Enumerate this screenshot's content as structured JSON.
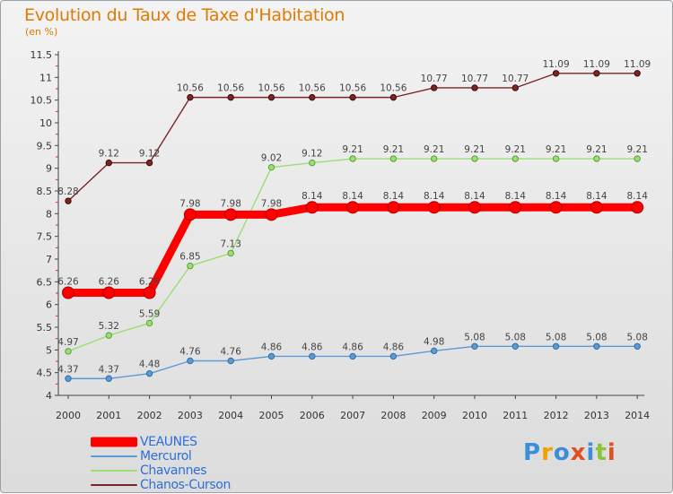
{
  "title": "Evolution du Taux de Taxe d'Habitation",
  "unit": "(en %)",
  "logo_text": "Proxiti",
  "chart_data": {
    "type": "line",
    "title": "Evolution du Taux de Taxe d'Habitation",
    "ylabel": "(en %)",
    "xlabel": "",
    "x": [
      "2000",
      "2001",
      "2002",
      "2003",
      "2004",
      "2005",
      "2006",
      "2007",
      "2008",
      "2009",
      "2010",
      "2011",
      "2012",
      "2013",
      "2014"
    ],
    "ylim": [
      4,
      11.5
    ],
    "yticks": [
      "4",
      "4.5",
      "5",
      "5.5",
      "6",
      "6.5",
      "7",
      "7.5",
      "8",
      "8.5",
      "9",
      "9.5",
      "10",
      "10.5",
      "11",
      "11.5"
    ],
    "grid": false,
    "legend_position": "bottom-left",
    "series": [
      {
        "name": "VEAUNES",
        "color": "#ff0000",
        "values": [
          6.26,
          6.26,
          6.26,
          7.98,
          7.98,
          7.98,
          8.14,
          8.14,
          8.14,
          8.14,
          8.14,
          8.14,
          8.14,
          8.14,
          8.14
        ],
        "labels": [
          "6.26",
          "6.26",
          "6.26",
          "7.98",
          "7.98",
          "7.98",
          "8.14",
          "8.14",
          "8.14",
          "8.14",
          "8.14",
          "8.14",
          "8.14",
          "8.14",
          "8.14"
        ]
      },
      {
        "name": "Mercurol",
        "color": "#5b9bd5",
        "values": [
          4.37,
          4.37,
          4.48,
          4.76,
          4.76,
          4.86,
          4.86,
          4.86,
          4.86,
          4.98,
          5.08,
          5.08,
          5.08,
          5.08,
          5.08
        ],
        "labels": [
          "4.37",
          "4.37",
          "4.48",
          "4.76",
          "4.76",
          "4.86",
          "4.86",
          "4.86",
          "4.86",
          "4.98",
          "5.08",
          "5.08",
          "5.08",
          "5.08",
          "5.08"
        ]
      },
      {
        "name": "Chavannes",
        "color": "#9bde73",
        "values": [
          4.97,
          5.32,
          5.59,
          6.85,
          7.13,
          9.02,
          9.12,
          9.21,
          9.21,
          9.21,
          9.21,
          9.21,
          9.21,
          9.21,
          9.21
        ],
        "labels": [
          "4.97",
          "5.32",
          "5.59",
          "6.85",
          "7.13",
          "9.02",
          "9.12",
          "9.21",
          "9.21",
          "9.21",
          "9.21",
          "9.21",
          "9.21",
          "9.21",
          "9.21"
        ]
      },
      {
        "name": "Chanos-Curson",
        "color": "#7b2525",
        "values": [
          8.28,
          9.12,
          9.12,
          10.56,
          10.56,
          10.56,
          10.56,
          10.56,
          10.56,
          10.77,
          10.77,
          10.77,
          11.09,
          11.09,
          11.09
        ],
        "labels": [
          "8.28",
          "9.12",
          "9.12",
          "10.56",
          "10.56",
          "10.56",
          "10.56",
          "10.56",
          "10.56",
          "10.77",
          "10.77",
          "10.77",
          "11.09",
          "11.09",
          "11.09"
        ]
      }
    ]
  }
}
